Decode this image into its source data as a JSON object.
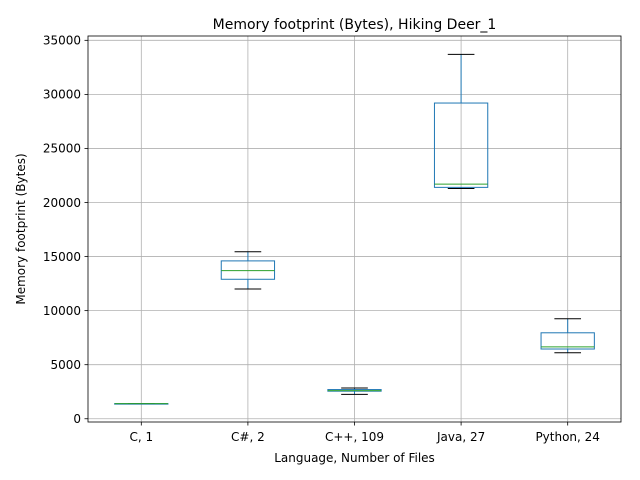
{
  "chart_data": {
    "type": "box",
    "title": "Memory footprint (Bytes), Hiking Deer_1",
    "xlabel": "Language, Number of Files",
    "ylabel": "Memory footprint (Bytes)",
    "ylim": [
      -300,
      35400
    ],
    "yticks": [
      0,
      5000,
      10000,
      15000,
      20000,
      25000,
      30000,
      35000
    ],
    "grid": true,
    "categories": [
      "C, 1",
      "C#, 2",
      "C++, 109",
      "Java, 27",
      "Python, 24"
    ],
    "boxes": [
      {
        "whisker_low": 1400,
        "q1": 1400,
        "median": 1400,
        "q3": 1400,
        "whisker_high": 1400
      },
      {
        "whisker_low": 12000,
        "q1": 12900,
        "median": 13700,
        "q3": 14600,
        "whisker_high": 15450
      },
      {
        "whisker_low": 2250,
        "q1": 2550,
        "median": 2600,
        "q3": 2700,
        "whisker_high": 2850
      },
      {
        "whisker_low": 21300,
        "q1": 21400,
        "median": 21700,
        "q3": 29200,
        "whisker_high": 33700
      },
      {
        "whisker_low": 6100,
        "q1": 6450,
        "median": 6650,
        "q3": 7950,
        "whisker_high": 9250
      }
    ],
    "colors": {
      "box": "#1f77b4",
      "median": "#2ca02c",
      "whisker": "#1f77b4",
      "cap": "#000000",
      "grid": "#b0b0b0",
      "axis": "#000000"
    }
  }
}
